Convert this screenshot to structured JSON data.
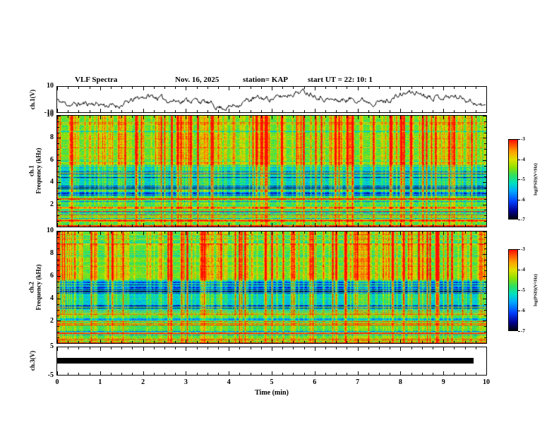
{
  "header": {
    "title": "VLF Spectra",
    "date": "Nov. 16, 2025",
    "station": "station= KAP",
    "start_ut": "start UT  =   22: 10: 1"
  },
  "x_axis": {
    "label": "Time  (min)",
    "tick_labels": [
      "0",
      "1",
      "2",
      "3",
      "4",
      "5",
      "6",
      "7",
      "8",
      "9",
      "10"
    ],
    "range_min": [
      0,
      10
    ]
  },
  "panels": {
    "ch1_wave": {
      "label": "ch.1(V)",
      "ylim_v": [
        -10,
        10
      ],
      "ytick_labels": [
        "10",
        "-10"
      ]
    },
    "ch1_spec": {
      "channel": "ch.1",
      "axis_label": "Frequency (kHz)",
      "ylim_khz": [
        0,
        10
      ],
      "ytick_labels": [
        "10",
        "8",
        "6",
        "4",
        "2"
      ]
    },
    "ch2_spec": {
      "channel": "ch.2",
      "axis_label": "Frequency (kHz)",
      "ylim_khz": [
        0,
        10
      ],
      "ytick_labels": [
        "10",
        "8",
        "6",
        "4",
        "2"
      ]
    },
    "ch3_wave": {
      "label": "ch.3(V)",
      "ylim_v": [
        -5,
        5
      ],
      "ytick_labels": [
        "5",
        "-5"
      ]
    }
  },
  "colorbar": {
    "label": "log(PSD)(V²/Hz)",
    "tick_labels": [
      "-3",
      "-4",
      "-5",
      "-6",
      "-7"
    ],
    "value_range": [
      -7,
      -3
    ],
    "stops": [
      [
        0.0,
        "#000010"
      ],
      [
        0.1,
        "#000090"
      ],
      [
        0.22,
        "#0040ff"
      ],
      [
        0.35,
        "#00a8ff"
      ],
      [
        0.45,
        "#00e0c0"
      ],
      [
        0.55,
        "#30e060"
      ],
      [
        0.65,
        "#90e000"
      ],
      [
        0.75,
        "#e0e000"
      ],
      [
        0.85,
        "#ffa000"
      ],
      [
        1.0,
        "#ff1000"
      ]
    ]
  },
  "chart_data": [
    {
      "panel": "ch1_wave",
      "type": "line",
      "ylabel": "ch.1(V)",
      "ylim": [
        -10,
        10
      ],
      "x_range_min": [
        0,
        10
      ],
      "description": "Noisy broadband voltage waveform of channel 1 fluctuating irregularly around 0 V with excursions to roughly ±8 V over the full 10-minute record."
    },
    {
      "panel": "ch1_spec",
      "type": "heatmap",
      "ylabel": "Frequency (kHz)",
      "x_range_min": [
        0,
        10
      ],
      "y_range_khz": [
        0,
        10
      ],
      "value_label": "log(PSD)(V²/Hz)",
      "value_range": [
        -7,
        -3
      ],
      "features": [
        "green-yellow broadband background above about 5.5 kHz crossed by dense red/orange vertical sferic streaks",
        "cyan-blue band with many dark-blue horizontal striations between about 2.8 and 5.6 kHz",
        "bright yellow-red horizontal emission lines below about 2 kHz, including strong lines near 0.95 and 1.75 kHz",
        "impulsive vertical streaks spanning all frequencies throughout the 10 minutes"
      ]
    },
    {
      "panel": "ch2_spec",
      "type": "heatmap",
      "ylabel": "Frequency (kHz)",
      "x_range_min": [
        0,
        10
      ],
      "y_range_khz": [
        0,
        10
      ],
      "value_label": "log(PSD)(V²/Hz)",
      "value_range": [
        -7,
        -3
      ],
      "features": [
        "same qualitative structure as channel 1: green-yellow upper band with red vertical streaks",
        "blue striated band near 3-5.5 kHz",
        "bright low-frequency horizontal lines below 2 kHz"
      ]
    },
    {
      "panel": "ch3_wave",
      "type": "line",
      "ylabel": "ch.3(V)",
      "ylim": [
        -5,
        5
      ],
      "x_range_min": [
        0,
        10
      ],
      "x_end_min": 9.7,
      "bar_halfheight_v": 0.9,
      "description": "Saturated flat channel-3 trace rendered as a solid black bar near 0 V extending from 0 to about 9.7 min."
    }
  ]
}
